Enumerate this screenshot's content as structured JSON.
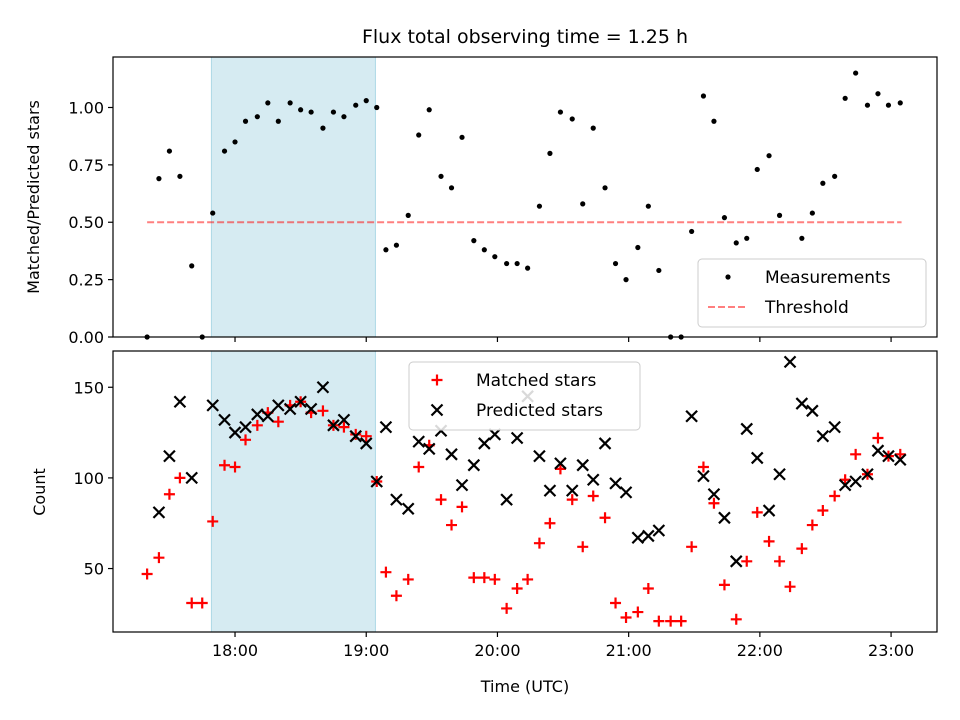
{
  "title": "Flux total observing time = 1.25 h",
  "chart_data": [
    {
      "type": "scatter",
      "ylabel": "Matched/Predicted stars",
      "xlim": [
        17.07,
        23.35
      ],
      "ylim": [
        0,
        1.22
      ],
      "xticks": [
        18,
        19,
        20,
        21,
        22,
        23
      ],
      "yticks": [
        0.0,
        0.25,
        0.5,
        0.75,
        1.0
      ],
      "ytick_labels": [
        "0.00",
        "0.25",
        "0.50",
        "0.75",
        "1.00"
      ],
      "shaded_region": [
        17.82,
        19.07
      ],
      "threshold": {
        "name": "Threshold",
        "y": 0.5,
        "x": [
          17.33,
          23.08
        ]
      },
      "legend": {
        "position": "lower-right",
        "entries": [
          "Measurements",
          "Threshold"
        ]
      },
      "series": [
        {
          "name": "Measurements",
          "x": [
            17.33,
            17.42,
            17.5,
            17.58,
            17.67,
            17.75,
            17.83,
            17.92,
            18.0,
            18.08,
            18.17,
            18.25,
            18.33,
            18.42,
            18.5,
            18.58,
            18.67,
            18.75,
            18.83,
            18.92,
            19.0,
            19.08,
            19.15,
            19.23,
            19.32,
            19.4,
            19.48,
            19.57,
            19.65,
            19.73,
            19.82,
            19.9,
            19.98,
            20.07,
            20.15,
            20.23,
            20.32,
            20.4,
            20.48,
            20.57,
            20.65,
            20.73,
            20.82,
            20.9,
            20.98,
            21.07,
            21.15,
            21.23,
            21.32,
            21.4,
            21.48,
            21.57,
            21.65,
            21.73,
            21.82,
            21.9,
            21.98,
            22.07,
            22.15,
            22.23,
            22.32,
            22.4,
            22.48,
            22.57,
            22.65,
            22.73,
            22.82,
            22.9,
            22.98,
            23.07
          ],
          "y": [
            0.0,
            0.69,
            0.81,
            0.7,
            0.31,
            0.0,
            0.54,
            0.81,
            0.85,
            0.94,
            0.96,
            1.02,
            0.94,
            1.02,
            0.99,
            0.98,
            0.91,
            0.98,
            0.96,
            1.01,
            1.03,
            1.0,
            0.38,
            0.4,
            0.53,
            0.88,
            0.99,
            0.7,
            0.65,
            0.87,
            0.42,
            0.38,
            0.35,
            0.32,
            0.32,
            0.3,
            0.57,
            0.8,
            0.98,
            0.95,
            0.58,
            0.91,
            0.65,
            0.32,
            0.25,
            0.39,
            0.57,
            0.29,
            0.0,
            0.0,
            0.46,
            1.05,
            0.94,
            0.52,
            0.41,
            0.43,
            0.73,
            0.79,
            0.53,
            0.25,
            0.43,
            0.54,
            0.67,
            0.7,
            1.04,
            1.15,
            1.01,
            1.06,
            1.01,
            1.02
          ]
        }
      ]
    },
    {
      "type": "scatter",
      "xlabel": "Time (UTC)",
      "ylabel": "Count",
      "xlim": [
        17.07,
        23.35
      ],
      "ylim": [
        15,
        170
      ],
      "xticks": [
        18,
        19,
        20,
        21,
        22,
        23
      ],
      "xtick_labels": [
        "18:00",
        "19:00",
        "20:00",
        "21:00",
        "22:00",
        "23:00"
      ],
      "yticks": [
        50,
        100,
        150
      ],
      "shaded_region": [
        17.82,
        19.07
      ],
      "legend": {
        "position": "upper-center",
        "entries": [
          "Matched stars",
          "Predicted stars"
        ]
      },
      "series": [
        {
          "name": "Matched stars",
          "color": "#ff0000",
          "marker": "+",
          "x": [
            17.33,
            17.42,
            17.5,
            17.58,
            17.67,
            17.75,
            17.83,
            17.92,
            18.0,
            18.08,
            18.17,
            18.25,
            18.33,
            18.42,
            18.5,
            18.58,
            18.67,
            18.75,
            18.83,
            18.92,
            19.0,
            19.08,
            19.15,
            19.23,
            19.32,
            19.4,
            19.48,
            19.57,
            19.65,
            19.73,
            19.82,
            19.9,
            19.98,
            20.07,
            20.15,
            20.23,
            20.32,
            20.4,
            20.48,
            20.57,
            20.65,
            20.73,
            20.82,
            20.9,
            20.98,
            21.07,
            21.15,
            21.23,
            21.32,
            21.4,
            21.48,
            21.57,
            21.65,
            21.73,
            21.82,
            21.9,
            21.98,
            22.07,
            22.15,
            22.23,
            22.32,
            22.4,
            22.48,
            22.57,
            22.65,
            22.73,
            22.82,
            22.9,
            22.98,
            23.07
          ],
          "y": [
            47,
            56,
            91,
            100,
            31,
            31,
            76,
            107,
            106,
            121,
            129,
            136,
            131,
            140,
            142,
            136,
            137,
            129,
            128,
            124,
            123,
            98,
            48,
            35,
            44,
            106,
            118,
            88,
            74,
            84,
            45,
            45,
            44,
            28,
            39,
            44,
            64,
            75,
            105,
            88,
            62,
            90,
            78,
            31,
            23,
            26,
            39,
            21,
            21,
            21,
            62,
            106,
            86,
            41,
            22,
            54,
            81,
            65,
            54,
            40,
            61,
            74,
            82,
            90,
            99,
            113,
            102,
            122,
            112,
            113
          ]
        },
        {
          "name": "Predicted stars",
          "color": "#000000",
          "marker": "x",
          "x": [
            17.42,
            17.5,
            17.58,
            17.67,
            17.83,
            17.92,
            18.0,
            18.08,
            18.17,
            18.25,
            18.33,
            18.42,
            18.5,
            18.58,
            18.67,
            18.75,
            18.83,
            18.92,
            19.0,
            19.08,
            19.15,
            19.23,
            19.32,
            19.4,
            19.48,
            19.57,
            19.65,
            19.73,
            19.82,
            19.9,
            19.98,
            20.07,
            20.15,
            20.23,
            20.32,
            20.4,
            20.48,
            20.57,
            20.65,
            20.73,
            20.82,
            20.9,
            20.98,
            21.07,
            21.15,
            21.23,
            21.48,
            21.57,
            21.65,
            21.73,
            21.82,
            21.9,
            21.98,
            22.07,
            22.15,
            22.23,
            22.32,
            22.4,
            22.48,
            22.57,
            22.65,
            22.73,
            22.82,
            22.9,
            22.98,
            23.07
          ],
          "y": [
            81,
            112,
            142,
            100,
            140,
            132,
            125,
            128,
            135,
            134,
            140,
            138,
            142,
            138,
            150,
            129,
            132,
            123,
            119,
            98,
            128,
            88,
            83,
            120,
            116,
            126,
            113,
            96,
            107,
            119,
            124,
            88,
            122,
            145,
            112,
            93,
            108,
            93,
            107,
            99,
            119,
            97,
            92,
            67,
            68,
            71,
            134,
            101,
            91,
            78,
            54,
            127,
            111,
            82,
            102,
            164,
            141,
            137,
            123,
            128,
            96,
            98,
            102,
            115,
            112,
            110
          ]
        }
      ]
    }
  ]
}
